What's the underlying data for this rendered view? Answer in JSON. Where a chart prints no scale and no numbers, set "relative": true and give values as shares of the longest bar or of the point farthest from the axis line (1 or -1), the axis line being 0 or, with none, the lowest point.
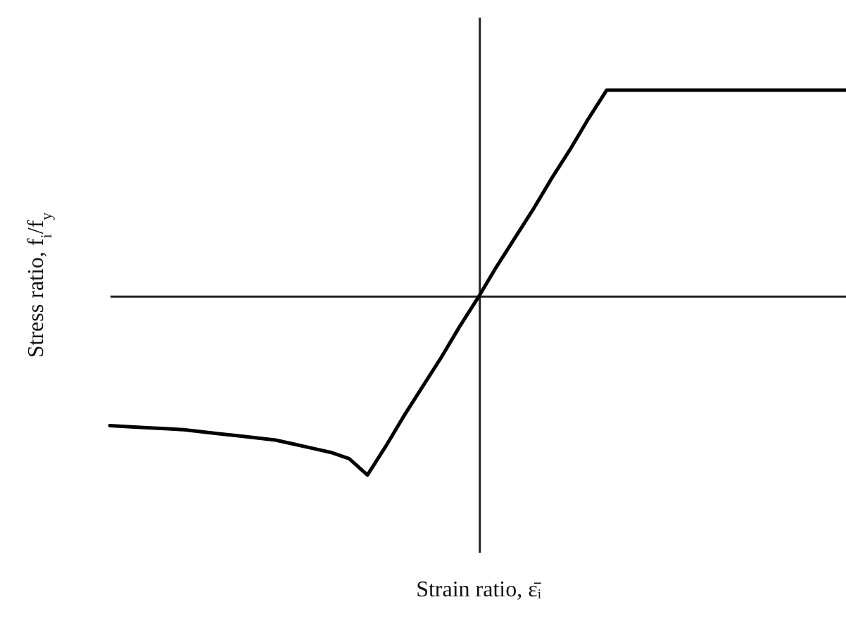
{
  "chart_data": {
    "type": "line",
    "relative": true,
    "xlabel": "Strain ratio, ε̄ᵢ",
    "ylabel": "Stress ratio, f$_{i}$/f$_{y}$",
    "categories": [
      null,
      null,
      null,
      null,
      null,
      null,
      null,
      null,
      null,
      null,
      null,
      null,
      null,
      null,
      null,
      null,
      null,
      null,
      null,
      null,
      null,
      null,
      null,
      null,
      null,
      null,
      null,
      null,
      null,
      null,
      null,
      null,
      null,
      null,
      null,
      null,
      null,
      null,
      null,
      null,
      null
    ],
    "series": [
      {
        "color": "#000000",
        "values": [
          -0.63,
          -0.635,
          -0.64,
          -0.645,
          -0.65,
          -0.66,
          -0.67,
          -0.68,
          -0.69,
          -0.7,
          -0.72,
          -0.74,
          -0.76,
          -0.79,
          -0.87,
          -0.73,
          -0.58,
          -0.44,
          -0.3,
          -0.15,
          -0.01,
          0.14,
          0.28,
          0.42,
          0.57,
          0.71,
          0.86,
          1,
          1,
          1,
          1,
          1,
          1,
          1,
          1,
          1,
          1,
          1,
          1,
          1,
          1
        ]
      }
    ],
    "marker": "none",
    "line_style": "solid",
    "grid": false
  }
}
